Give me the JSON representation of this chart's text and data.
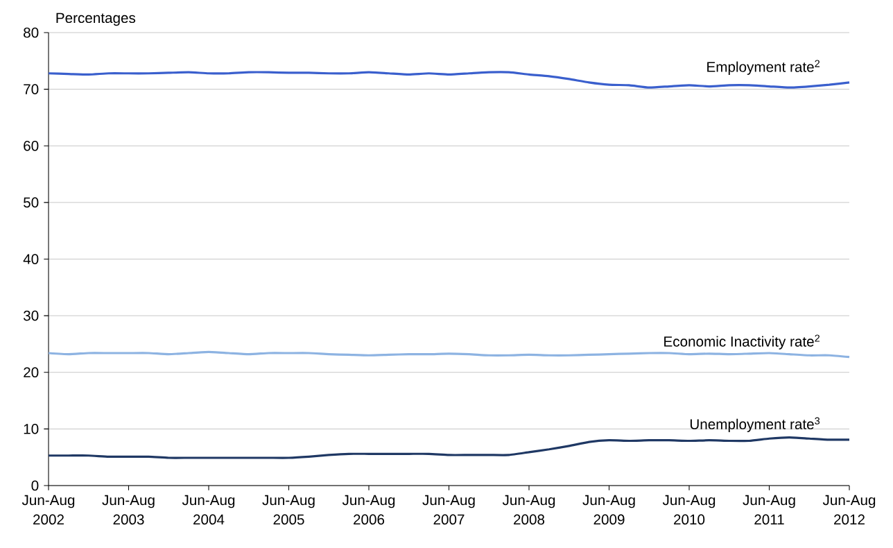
{
  "chart_data": {
    "type": "line",
    "ylabel": "Percentages",
    "categories": [
      "Jun-Aug 2002",
      null,
      null,
      null,
      "Jun-Aug 2003",
      null,
      null,
      null,
      "Jun-Aug 2004",
      null,
      null,
      null,
      "Jun-Aug 2005",
      null,
      null,
      null,
      "Jun-Aug 2006",
      null,
      null,
      null,
      "Jun-Aug 2007",
      null,
      null,
      null,
      "Jun-Aug 2008",
      null,
      null,
      null,
      "Jun-Aug 2009",
      null,
      null,
      null,
      "Jun-Aug 2010",
      null,
      null,
      null,
      "Jun-Aug 2011",
      null,
      null,
      null,
      "Jun-Aug 2012"
    ],
    "series": [
      {
        "name": "Employment rate$^{2}$",
        "color": "#3a5fcd",
        "values": [
          72.8,
          72.7,
          72.6,
          72.8,
          72.8,
          72.8,
          72.9,
          73.0,
          72.8,
          72.8,
          73.0,
          73.0,
          72.9,
          72.9,
          72.8,
          72.8,
          73.0,
          72.8,
          72.6,
          72.8,
          72.6,
          72.8,
          73.0,
          73.0,
          72.6,
          72.3,
          71.8,
          71.2,
          70.8,
          70.7,
          70.3,
          70.5,
          70.7,
          70.5,
          70.7,
          70.7,
          70.5,
          70.3,
          70.5,
          70.8,
          71.2
        ]
      },
      {
        "name": "Economic Inactivity rate$^{2}$",
        "color": "#8db3e2",
        "values": [
          23.4,
          23.2,
          23.4,
          23.4,
          23.4,
          23.4,
          23.2,
          23.4,
          23.6,
          23.4,
          23.2,
          23.4,
          23.4,
          23.4,
          23.2,
          23.1,
          23.0,
          23.1,
          23.2,
          23.2,
          23.3,
          23.2,
          23.0,
          23.0,
          23.1,
          23.0,
          23.0,
          23.1,
          23.2,
          23.3,
          23.4,
          23.4,
          23.2,
          23.3,
          23.2,
          23.3,
          23.4,
          23.2,
          23.0,
          23.0,
          22.7
        ]
      },
      {
        "name": "Unemployment rate$^{3}$",
        "color": "#1f3864",
        "values": [
          5.3,
          5.3,
          5.3,
          5.1,
          5.1,
          5.1,
          4.9,
          4.9,
          4.9,
          4.9,
          4.9,
          4.9,
          4.9,
          5.1,
          5.4,
          5.6,
          5.6,
          5.6,
          5.6,
          5.6,
          5.4,
          5.4,
          5.4,
          5.4,
          5.9,
          6.4,
          7.0,
          7.7,
          8.0,
          7.9,
          8.0,
          8.0,
          7.9,
          8.0,
          7.9,
          7.9,
          8.3,
          8.5,
          8.3,
          8.1,
          8.1
        ]
      }
    ],
    "ylim": [
      0,
      80
    ],
    "yticks": [
      0,
      10,
      20,
      30,
      40,
      50,
      60,
      70,
      80
    ],
    "grid": "y"
  }
}
